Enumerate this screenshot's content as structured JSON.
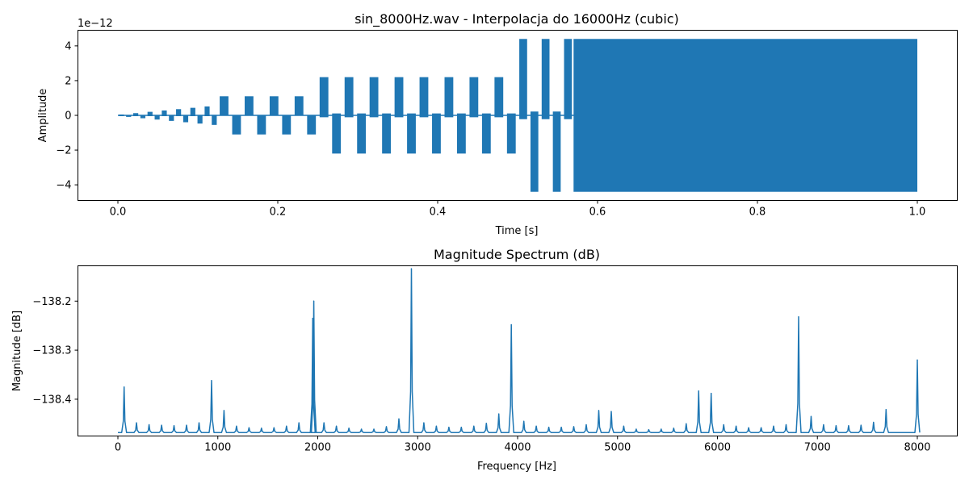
{
  "chart_data": [
    {
      "type": "line",
      "title": "sin_8000Hz.wav - Interpolacja do 16000Hz (cubic)",
      "xlabel": "Time [s]",
      "ylabel": "Amplitude",
      "y_scale_label": "1e−12",
      "xlim": [
        -0.05,
        1.05
      ],
      "ylim": [
        -4.9,
        4.9
      ],
      "x_ticks": [
        0.0,
        0.2,
        0.4,
        0.6,
        0.8,
        1.0
      ],
      "x_tick_labels": [
        "0.0",
        "0.2",
        "0.4",
        "0.6",
        "0.8",
        "1.0"
      ],
      "y_ticks": [
        4,
        2,
        0,
        -2,
        -4
      ],
      "y_tick_labels": [
        "4",
        "2",
        "0",
        "−2",
        "−4"
      ],
      "series_color": "#1f77b4",
      "envelope_segments": [
        {
          "x": [
            0.0,
            0.125
          ],
          "amp": [
            0.05,
            0.55
          ],
          "style": "sparse-bursts"
        },
        {
          "x": [
            0.125,
            0.25
          ],
          "amp": 1.1,
          "style": "bursts"
        },
        {
          "x": [
            0.25,
            0.5
          ],
          "amp": 2.2,
          "style": "bursts"
        },
        {
          "x": [
            0.5,
            0.57
          ],
          "amp": 4.4,
          "style": "bursts"
        },
        {
          "x": [
            0.57,
            1.0
          ],
          "amp": 4.4,
          "style": "dense"
        }
      ]
    },
    {
      "type": "line",
      "title": "Magnitude Spectrum (dB)",
      "xlabel": "Frequency [Hz]",
      "ylabel": "Magnitude [dB]",
      "xlim": [
        -400,
        8400
      ],
      "ylim": [
        -138.475,
        -138.128
      ],
      "x_ticks": [
        0,
        1000,
        2000,
        3000,
        4000,
        5000,
        6000,
        7000,
        8000
      ],
      "x_tick_labels": [
        "0",
        "1000",
        "2000",
        "3000",
        "4000",
        "5000",
        "6000",
        "7000",
        "8000"
      ],
      "y_ticks": [
        -138.2,
        -138.3,
        -138.4
      ],
      "y_tick_labels": [
        "−138.2",
        "−138.3",
        "−138.4"
      ],
      "series_color": "#1f77b4",
      "baseline": -138.468,
      "peaks": [
        {
          "x": 62,
          "y": -138.375
        },
        {
          "x": 186,
          "y": -138.448
        },
        {
          "x": 312,
          "y": -138.452
        },
        {
          "x": 437,
          "y": -138.453
        },
        {
          "x": 562,
          "y": -138.454
        },
        {
          "x": 687,
          "y": -138.453
        },
        {
          "x": 812,
          "y": -138.448
        },
        {
          "x": 937,
          "y": -138.362
        },
        {
          "x": 1062,
          "y": -138.423
        },
        {
          "x": 1187,
          "y": -138.455
        },
        {
          "x": 1312,
          "y": -138.458
        },
        {
          "x": 1437,
          "y": -138.459
        },
        {
          "x": 1562,
          "y": -138.458
        },
        {
          "x": 1687,
          "y": -138.455
        },
        {
          "x": 1812,
          "y": -138.448
        },
        {
          "x": 1950,
          "y": -138.235
        },
        {
          "x": 1960,
          "y": -138.2
        },
        {
          "x": 2062,
          "y": -138.448
        },
        {
          "x": 2187,
          "y": -138.455
        },
        {
          "x": 2312,
          "y": -138.459
        },
        {
          "x": 2437,
          "y": -138.461
        },
        {
          "x": 2562,
          "y": -138.461
        },
        {
          "x": 2687,
          "y": -138.456
        },
        {
          "x": 2812,
          "y": -138.44
        },
        {
          "x": 2937,
          "y": -138.134
        },
        {
          "x": 3062,
          "y": -138.448
        },
        {
          "x": 3187,
          "y": -138.455
        },
        {
          "x": 3312,
          "y": -138.457
        },
        {
          "x": 3437,
          "y": -138.457
        },
        {
          "x": 3562,
          "y": -138.455
        },
        {
          "x": 3687,
          "y": -138.449
        },
        {
          "x": 3812,
          "y": -138.43
        },
        {
          "x": 3937,
          "y": -138.248
        },
        {
          "x": 4062,
          "y": -138.445
        },
        {
          "x": 4187,
          "y": -138.455
        },
        {
          "x": 4312,
          "y": -138.457
        },
        {
          "x": 4437,
          "y": -138.457
        },
        {
          "x": 4562,
          "y": -138.456
        },
        {
          "x": 4687,
          "y": -138.452
        },
        {
          "x": 4812,
          "y": -138.423
        },
        {
          "x": 4937,
          "y": -138.425
        },
        {
          "x": 5062,
          "y": -138.455
        },
        {
          "x": 5187,
          "y": -138.461
        },
        {
          "x": 5312,
          "y": -138.462
        },
        {
          "x": 5437,
          "y": -138.461
        },
        {
          "x": 5562,
          "y": -138.459
        },
        {
          "x": 5687,
          "y": -138.45
        },
        {
          "x": 5812,
          "y": -138.383
        },
        {
          "x": 5937,
          "y": -138.388
        },
        {
          "x": 6062,
          "y": -138.452
        },
        {
          "x": 6187,
          "y": -138.455
        },
        {
          "x": 6312,
          "y": -138.458
        },
        {
          "x": 6437,
          "y": -138.458
        },
        {
          "x": 6562,
          "y": -138.455
        },
        {
          "x": 6687,
          "y": -138.452
        },
        {
          "x": 6812,
          "y": -138.232
        },
        {
          "x": 6937,
          "y": -138.435
        },
        {
          "x": 7062,
          "y": -138.452
        },
        {
          "x": 7187,
          "y": -138.454
        },
        {
          "x": 7312,
          "y": -138.454
        },
        {
          "x": 7437,
          "y": -138.453
        },
        {
          "x": 7562,
          "y": -138.447
        },
        {
          "x": 7687,
          "y": -138.421
        },
        {
          "x": 8000,
          "y": -138.32
        }
      ]
    }
  ]
}
